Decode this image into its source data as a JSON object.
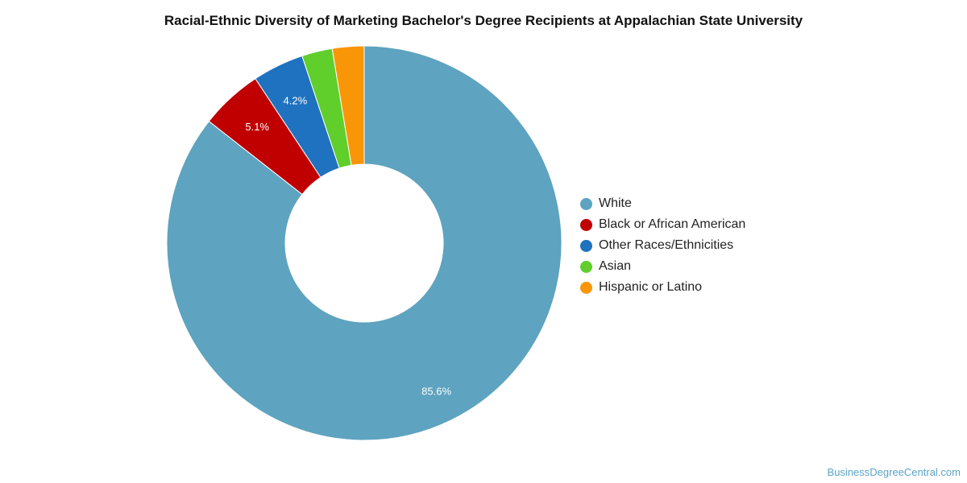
{
  "chart_data": {
    "type": "pie",
    "title": "Racial-Ethnic Diversity of Marketing Bachelor's Degree Recipients at Appalachian State University",
    "donut": true,
    "legend_position": "right",
    "series": [
      {
        "name": "White",
        "value": 85.6,
        "color": "#5ea3bf",
        "label": "85.6%"
      },
      {
        "name": "Black or African American",
        "value": 5.1,
        "color": "#c00000",
        "label": "5.1%"
      },
      {
        "name": "Other Races/Ethnicities",
        "value": 4.2,
        "color": "#1f72bf",
        "label": "4.2%"
      },
      {
        "name": "Asian",
        "value": 2.5,
        "color": "#60ce2b",
        "label": ""
      },
      {
        "name": "Hispanic or Latino",
        "value": 2.6,
        "color": "#f99607",
        "label": ""
      }
    ]
  },
  "watermark": "BusinessDegreeCentral.com"
}
